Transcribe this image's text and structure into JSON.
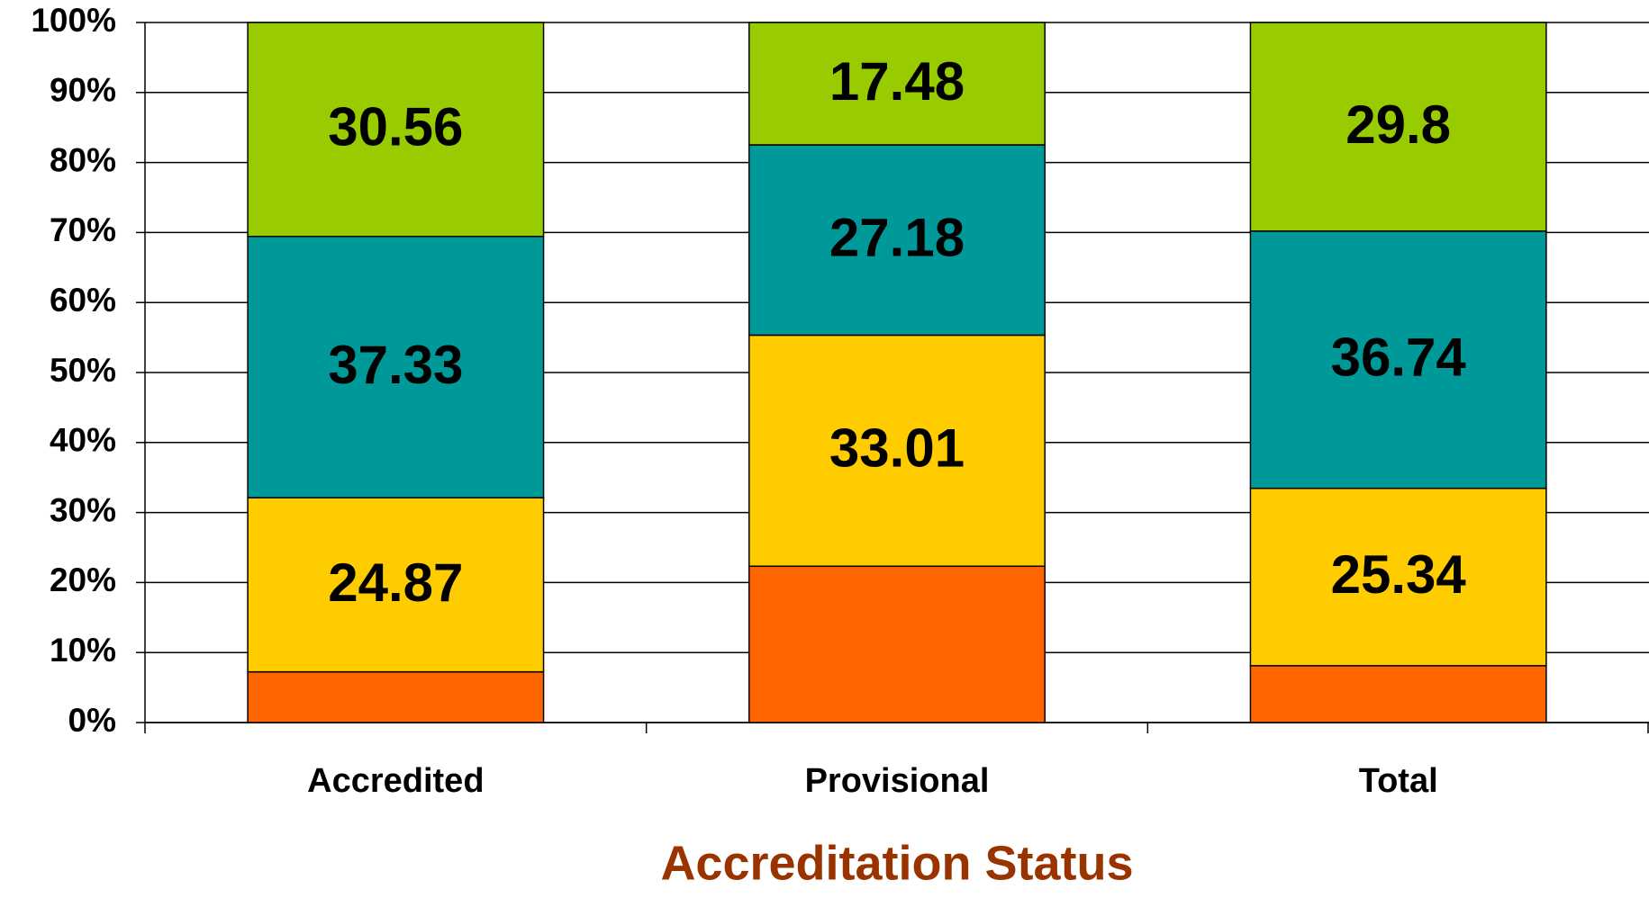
{
  "chart_data": {
    "type": "stacked_bar_100",
    "x_axis_label": "Accreditation Status",
    "categories": [
      "Accredited",
      "Provisional",
      "Total"
    ],
    "series": [
      {
        "color": "#ff6600",
        "values": [
          7.24,
          22.33,
          8.12
        ],
        "labels": false
      },
      {
        "color": "#ffcc00",
        "values": [
          24.87,
          33.01,
          25.34
        ],
        "labels": true
      },
      {
        "color": "#009999",
        "values": [
          37.33,
          27.18,
          36.74
        ],
        "labels": true
      },
      {
        "color": "#99cc00",
        "values": [
          30.56,
          17.48,
          29.8
        ],
        "labels": true
      }
    ],
    "ylim": [
      0,
      100
    ],
    "yticks": [
      {
        "value": 0,
        "label": "0%"
      },
      {
        "value": 10,
        "label": "10%"
      },
      {
        "value": 20,
        "label": "20%"
      },
      {
        "value": 30,
        "label": "30%"
      },
      {
        "value": 40,
        "label": "40%"
      },
      {
        "value": 50,
        "label": "50%"
      },
      {
        "value": 60,
        "label": "60%"
      },
      {
        "value": 70,
        "label": "70%"
      },
      {
        "value": 80,
        "label": "80%"
      },
      {
        "value": 90,
        "label": "90%"
      },
      {
        "value": 100,
        "label": "100%"
      }
    ],
    "grid": true
  }
}
